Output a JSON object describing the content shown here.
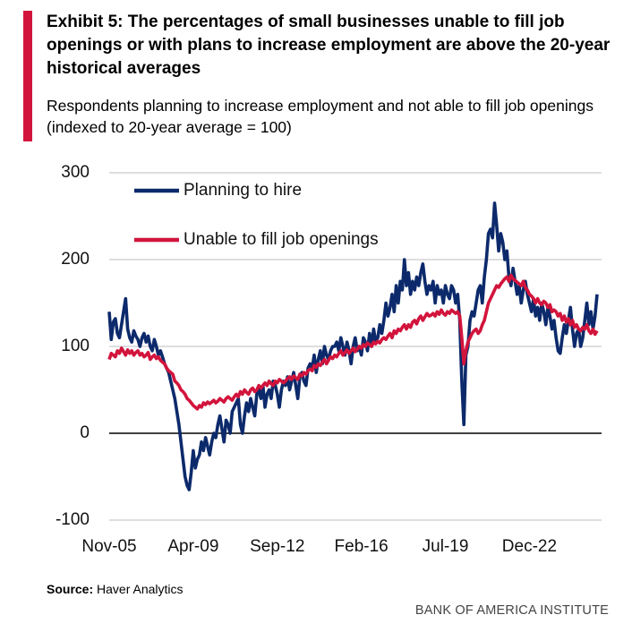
{
  "chart_data": {
    "type": "line",
    "title": "Exhibit 5: The percentages of small businesses unable to fill job openings or with plans to increase employment are above the 20-year historical averages",
    "subtitle": "Respondents planning to increase employment and not able to fill job openings (indexed to 20-year average = 100)",
    "source_label": "Source:",
    "source": "Haver Analytics",
    "brand": "BANK OF AMERICA INSTITUTE",
    "ylim": [
      -100,
      300
    ],
    "yticks": [
      -100,
      0,
      100,
      200,
      300
    ],
    "grid": true,
    "legend": "top-left",
    "categories": [
      "Nov-05",
      null,
      null,
      null,
      null,
      null,
      null,
      null,
      null,
      null,
      null,
      null,
      null,
      null,
      null,
      null,
      null,
      null,
      null,
      null,
      null,
      null,
      null,
      null,
      null,
      null,
      null,
      null,
      null,
      null,
      null,
      null,
      null,
      null,
      null,
      null,
      null,
      null,
      null,
      null,
      null,
      "Apr-09",
      null,
      null,
      null,
      null,
      null,
      null,
      null,
      null,
      null,
      null,
      null,
      null,
      null,
      null,
      null,
      null,
      null,
      null,
      null,
      null,
      null,
      null,
      null,
      null,
      null,
      null,
      null,
      null,
      null,
      null,
      null,
      null,
      null,
      null,
      null,
      null,
      null,
      null,
      null,
      null,
      "Sep-12",
      null,
      null,
      null,
      null,
      null,
      null,
      null,
      null,
      null,
      null,
      null,
      null,
      null,
      null,
      null,
      null,
      null,
      null,
      null,
      null,
      null,
      null,
      null,
      null,
      null,
      null,
      null,
      null,
      null,
      null,
      null,
      null,
      null,
      null,
      null,
      null,
      null,
      null,
      null,
      null,
      "Feb-16",
      null,
      null,
      null,
      null,
      null,
      null,
      null,
      null,
      null,
      null,
      null,
      null,
      null,
      null,
      null,
      null,
      null,
      null,
      null,
      null,
      null,
      null,
      null,
      null,
      null,
      null,
      null,
      null,
      null,
      null,
      null,
      null,
      null,
      null,
      null,
      null,
      null,
      null,
      null,
      null,
      "Jul-19",
      null,
      null,
      null,
      null,
      null,
      null,
      null,
      null,
      null,
      null,
      null,
      null,
      null,
      null,
      null,
      null,
      null,
      null,
      null,
      null,
      null,
      null,
      null,
      null,
      null,
      null,
      null,
      null,
      null,
      null,
      null,
      null,
      null,
      null,
      null,
      null,
      null,
      null,
      null,
      null,
      "Dec-22",
      null,
      null,
      null,
      null,
      null,
      null,
      null,
      null,
      null,
      null,
      null,
      null,
      null,
      null,
      null,
      null,
      null,
      null,
      null,
      null,
      null,
      null,
      null,
      null,
      null,
      null,
      null,
      null,
      null,
      null,
      null,
      null,
      null
    ],
    "series": [
      {
        "name": "Planning to hire",
        "color": "#0c2a6b",
        "values": [
          140,
          108,
          128,
          132,
          115,
          110,
          125,
          140,
          155,
          120,
          110,
          105,
          118,
          112,
          108,
          100,
          110,
          115,
          105,
          112,
          100,
          95,
          108,
          100,
          90,
          95,
          88,
          80,
          75,
          70,
          60,
          50,
          40,
          25,
          10,
          -10,
          -30,
          -50,
          -60,
          -65,
          -45,
          -20,
          -40,
          -30,
          -25,
          -10,
          -20,
          -5,
          -15,
          -25,
          -10,
          0,
          -5,
          10,
          20,
          5,
          -10,
          15,
          10,
          0,
          25,
          30,
          35,
          40,
          10,
          0,
          20,
          35,
          25,
          40,
          30,
          20,
          45,
          50,
          40,
          55,
          30,
          45,
          50,
          40,
          60,
          55,
          45,
          30,
          50,
          60,
          55,
          65,
          50,
          60,
          70,
          55,
          40,
          65,
          70,
          60,
          55,
          75,
          80,
          75,
          90,
          70,
          85,
          95,
          80,
          100,
          90,
          85,
          95,
          100,
          100,
          105,
          95,
          110,
          100,
          90,
          105,
          95,
          80,
          100,
          110,
          95,
          100,
          90,
          110,
          105,
          95,
          115,
          100,
          120,
          105,
          110,
          125,
          115,
          130,
          150,
          135,
          145,
          160,
          140,
          170,
          150,
          175,
          165,
          200,
          170,
          185,
          160,
          175,
          165,
          180,
          170,
          185,
          195,
          175,
          160,
          170,
          165,
          175,
          150,
          170,
          160,
          165,
          150,
          170,
          160,
          155,
          170,
          165,
          150,
          160,
          130,
          60,
          10,
          90,
          100,
          130,
          140,
          135,
          150,
          165,
          170,
          150,
          180,
          200,
          230,
          235,
          225,
          265,
          240,
          210,
          230,
          220,
          200,
          210,
          180,
          170,
          190,
          175,
          160,
          170,
          150,
          165,
          175,
          160,
          150,
          140,
          155,
          135,
          145,
          130,
          150,
          140,
          125,
          145,
          135,
          120,
          130,
          110,
          95,
          92,
          110,
          125,
          115,
          130,
          145,
          120,
          100,
          115,
          120,
          100,
          110,
          130,
          150,
          125,
          140,
          120,
          135,
          160
        ]
      },
      {
        "name": "Unable to fill job openings",
        "color": "#d2143c",
        "values": [
          85,
          92,
          90,
          88,
          95,
          92,
          98,
          94,
          90,
          96,
          92,
          95,
          90,
          93,
          95,
          90,
          92,
          88,
          90,
          93,
          85,
          88,
          90,
          86,
          88,
          84,
          82,
          80,
          75,
          72,
          70,
          68,
          60,
          58,
          55,
          50,
          48,
          45,
          40,
          38,
          35,
          32,
          30,
          28,
          32,
          30,
          35,
          33,
          36,
          34,
          36,
          38,
          35,
          37,
          40,
          38,
          36,
          40,
          42,
          40,
          38,
          42,
          45,
          42,
          48,
          45,
          50,
          47,
          45,
          50,
          52,
          48,
          50,
          55,
          52,
          55,
          58,
          55,
          60,
          57,
          55,
          60,
          58,
          62,
          60,
          58,
          60,
          63,
          65,
          62,
          66,
          64,
          62,
          68,
          66,
          70,
          68,
          72,
          74,
          72,
          78,
          76,
          80,
          78,
          82,
          85,
          80,
          84,
          88,
          86,
          90,
          88,
          92,
          95,
          90,
          93,
          96,
          92,
          95,
          98,
          94,
          97,
          100,
          98,
          102,
          100,
          104,
          102,
          100,
          105,
          103,
          106,
          104,
          108,
          110,
          108,
          112,
          115,
          110,
          118,
          115,
          120,
          118,
          122,
          125,
          120,
          125,
          122,
          128,
          130,
          126,
          132,
          135,
          130,
          134,
          138,
          135,
          136,
          138,
          135,
          140,
          137,
          142,
          138,
          136,
          140,
          138,
          142,
          140,
          138,
          140,
          135,
          110,
          80,
          95,
          105,
          110,
          115,
          118,
          120,
          115,
          118,
          125,
          130,
          140,
          150,
          155,
          160,
          165,
          170,
          168,
          172,
          175,
          178,
          180,
          175,
          182,
          178,
          176,
          174,
          172,
          170,
          175,
          168,
          165,
          160,
          158,
          155,
          150,
          155,
          150,
          148,
          152,
          150,
          145,
          148,
          140,
          142,
          140,
          135,
          138,
          130,
          135,
          128,
          132,
          125,
          130,
          122,
          125,
          120,
          118,
          122,
          120,
          125,
          118,
          115,
          120,
          114,
          118
        ]
      }
    ]
  }
}
